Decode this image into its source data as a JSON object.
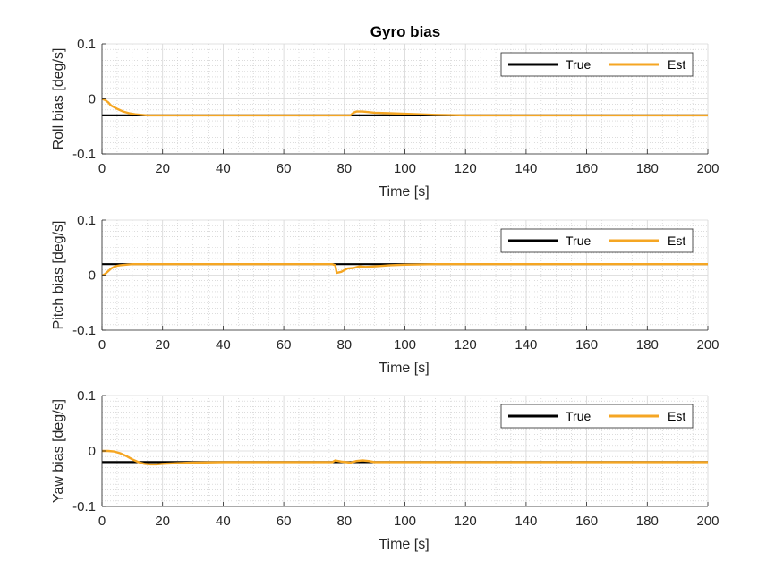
{
  "title": "Gyro bias",
  "colors": {
    "true": "#000000",
    "est": "#F5A623",
    "grid": "#c8c8c8",
    "axis": "#262626"
  },
  "chart_data": [
    {
      "type": "line",
      "title": "Gyro bias",
      "xlabel": "Time [s]",
      "ylabel": "Roll bias [deg/s]",
      "xlim": [
        0,
        200
      ],
      "ylim": [
        -0.1,
        0.1
      ],
      "xticks": [
        "0",
        "20",
        "40",
        "60",
        "80",
        "100",
        "120",
        "140",
        "160",
        "180",
        "200"
      ],
      "yticks": [
        "-0.1",
        "0",
        "0.1"
      ],
      "grid": "on",
      "legend": {
        "placement": "top-right",
        "entries": [
          "True",
          "Est"
        ]
      },
      "series": [
        {
          "name": "True",
          "x": [
            0,
            200
          ],
          "y": [
            -0.03,
            -0.03
          ]
        },
        {
          "name": "Est",
          "x": [
            0,
            1,
            2,
            3,
            5,
            7,
            9,
            11,
            13,
            15,
            20,
            30,
            50,
            70,
            82,
            83,
            84,
            86,
            90,
            95,
            100,
            105,
            110,
            120,
            150,
            200
          ],
          "y": [
            0.0,
            -0.002,
            -0.006,
            -0.012,
            -0.018,
            -0.023,
            -0.026,
            -0.028,
            -0.029,
            -0.03,
            -0.03,
            -0.03,
            -0.03,
            -0.03,
            -0.03,
            -0.025,
            -0.023,
            -0.023,
            -0.025,
            -0.026,
            -0.027,
            -0.028,
            -0.029,
            -0.03,
            -0.03,
            -0.03
          ]
        }
      ]
    },
    {
      "type": "line",
      "xlabel": "Time [s]",
      "ylabel": "Pitch bias [deg/s]",
      "xlim": [
        0,
        200
      ],
      "ylim": [
        -0.1,
        0.1
      ],
      "xticks": [
        "0",
        "20",
        "40",
        "60",
        "80",
        "100",
        "120",
        "140",
        "160",
        "180",
        "200"
      ],
      "yticks": [
        "-0.1",
        "0",
        "0.1"
      ],
      "grid": "on",
      "legend": {
        "placement": "top-right",
        "entries": [
          "True",
          "Est"
        ]
      },
      "series": [
        {
          "name": "True",
          "x": [
            0,
            200
          ],
          "y": [
            0.02,
            0.02
          ]
        },
        {
          "name": "Est",
          "x": [
            0,
            1,
            2,
            3,
            4,
            5,
            6,
            8,
            10,
            15,
            30,
            50,
            76,
            77,
            77.5,
            79,
            81,
            83,
            85,
            87,
            90,
            95,
            100,
            110,
            150,
            200
          ],
          "y": [
            -0.001,
            0.002,
            0.007,
            0.012,
            0.015,
            0.017,
            0.018,
            0.019,
            0.02,
            0.02,
            0.02,
            0.02,
            0.02,
            0.018,
            0.004,
            0.006,
            0.012,
            0.013,
            0.016,
            0.015,
            0.016,
            0.018,
            0.019,
            0.02,
            0.02,
            0.02
          ]
        }
      ]
    },
    {
      "type": "line",
      "xlabel": "Time [s]",
      "ylabel": "Yaw bias [deg/s]",
      "xlim": [
        0,
        200
      ],
      "ylim": [
        -0.1,
        0.1
      ],
      "xticks": [
        "0",
        "20",
        "40",
        "60",
        "80",
        "100",
        "120",
        "140",
        "160",
        "180",
        "200"
      ],
      "yticks": [
        "-0.1",
        "0",
        "0.1"
      ],
      "grid": "on",
      "legend": {
        "placement": "top-right",
        "entries": [
          "True",
          "Est"
        ]
      },
      "series": [
        {
          "name": "True",
          "x": [
            0,
            200
          ],
          "y": [
            -0.02,
            -0.02
          ]
        },
        {
          "name": "Est",
          "x": [
            0,
            2,
            4,
            6,
            8,
            10,
            12,
            14,
            16,
            18,
            20,
            25,
            30,
            40,
            76,
            77,
            79,
            82,
            84,
            86,
            88,
            90,
            95,
            100,
            150,
            200
          ],
          "y": [
            0.0,
            0.0,
            -0.001,
            -0.004,
            -0.009,
            -0.015,
            -0.02,
            -0.023,
            -0.024,
            -0.024,
            -0.023,
            -0.022,
            -0.021,
            -0.02,
            -0.02,
            -0.017,
            -0.019,
            -0.021,
            -0.018,
            -0.017,
            -0.018,
            -0.02,
            -0.02,
            -0.02,
            -0.02,
            -0.02
          ]
        }
      ]
    }
  ]
}
